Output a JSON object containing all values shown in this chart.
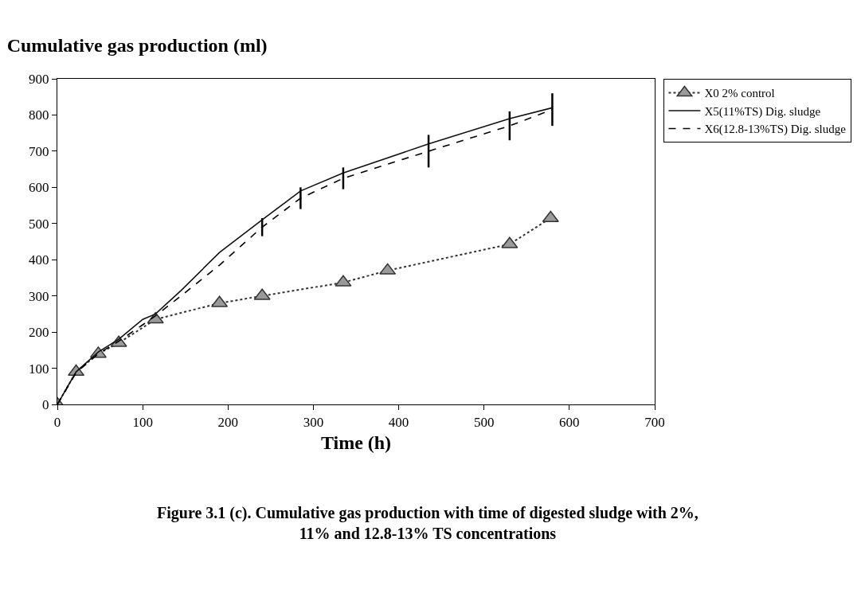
{
  "chart_data": {
    "type": "line",
    "title": "Cumulative gas production (ml)",
    "xlabel": "Time (h)",
    "xlim": [
      0,
      700
    ],
    "xticks": [
      0,
      100,
      200,
      300,
      400,
      500,
      600,
      700
    ],
    "ylim": [
      0,
      900
    ],
    "yticks": [
      0,
      100,
      200,
      300,
      400,
      500,
      600,
      700,
      800,
      900
    ],
    "grid": false,
    "legend": "right",
    "annotations": [
      "Figure 3.1 (c). Cumulative gas production with time of digested sludge with 2%, 11% and 12.8-13% TS concentrations"
    ],
    "series": [
      {
        "name": "X0 2% control",
        "color": "#333333",
        "marker": "triangle",
        "line_style": "dotted",
        "x": [
          0,
          22,
          48,
          72,
          115,
          190,
          240,
          335,
          387,
          530,
          578
        ],
        "values": [
          0,
          90,
          140,
          170,
          235,
          280,
          300,
          337,
          370,
          443,
          515
        ]
      },
      {
        "name": "X5(11%TS) Dig. sludge",
        "color": "#111111",
        "marker": "none",
        "line_style": "solid",
        "x": [
          0,
          22,
          48,
          72,
          100,
          115,
          145,
          190,
          240,
          285,
          335,
          435,
          530,
          580
        ],
        "values": [
          0,
          90,
          145,
          180,
          235,
          250,
          315,
          420,
          510,
          590,
          640,
          720,
          790,
          820
        ]
      },
      {
        "name": "X6(12.8-13%TS) Dig. sludge",
        "color": "#000000",
        "marker": "none",
        "line_style": "dashed",
        "x": [
          0,
          22,
          48,
          72,
          100,
          115,
          145,
          190,
          240,
          285,
          335,
          435,
          530,
          580
        ],
        "values": [
          0,
          88,
          140,
          175,
          220,
          245,
          300,
          385,
          490,
          570,
          625,
          700,
          770,
          815
        ],
        "errors": [
          null,
          null,
          null,
          null,
          null,
          null,
          null,
          null,
          25,
          30,
          30,
          45,
          40,
          45
        ]
      }
    ]
  }
}
